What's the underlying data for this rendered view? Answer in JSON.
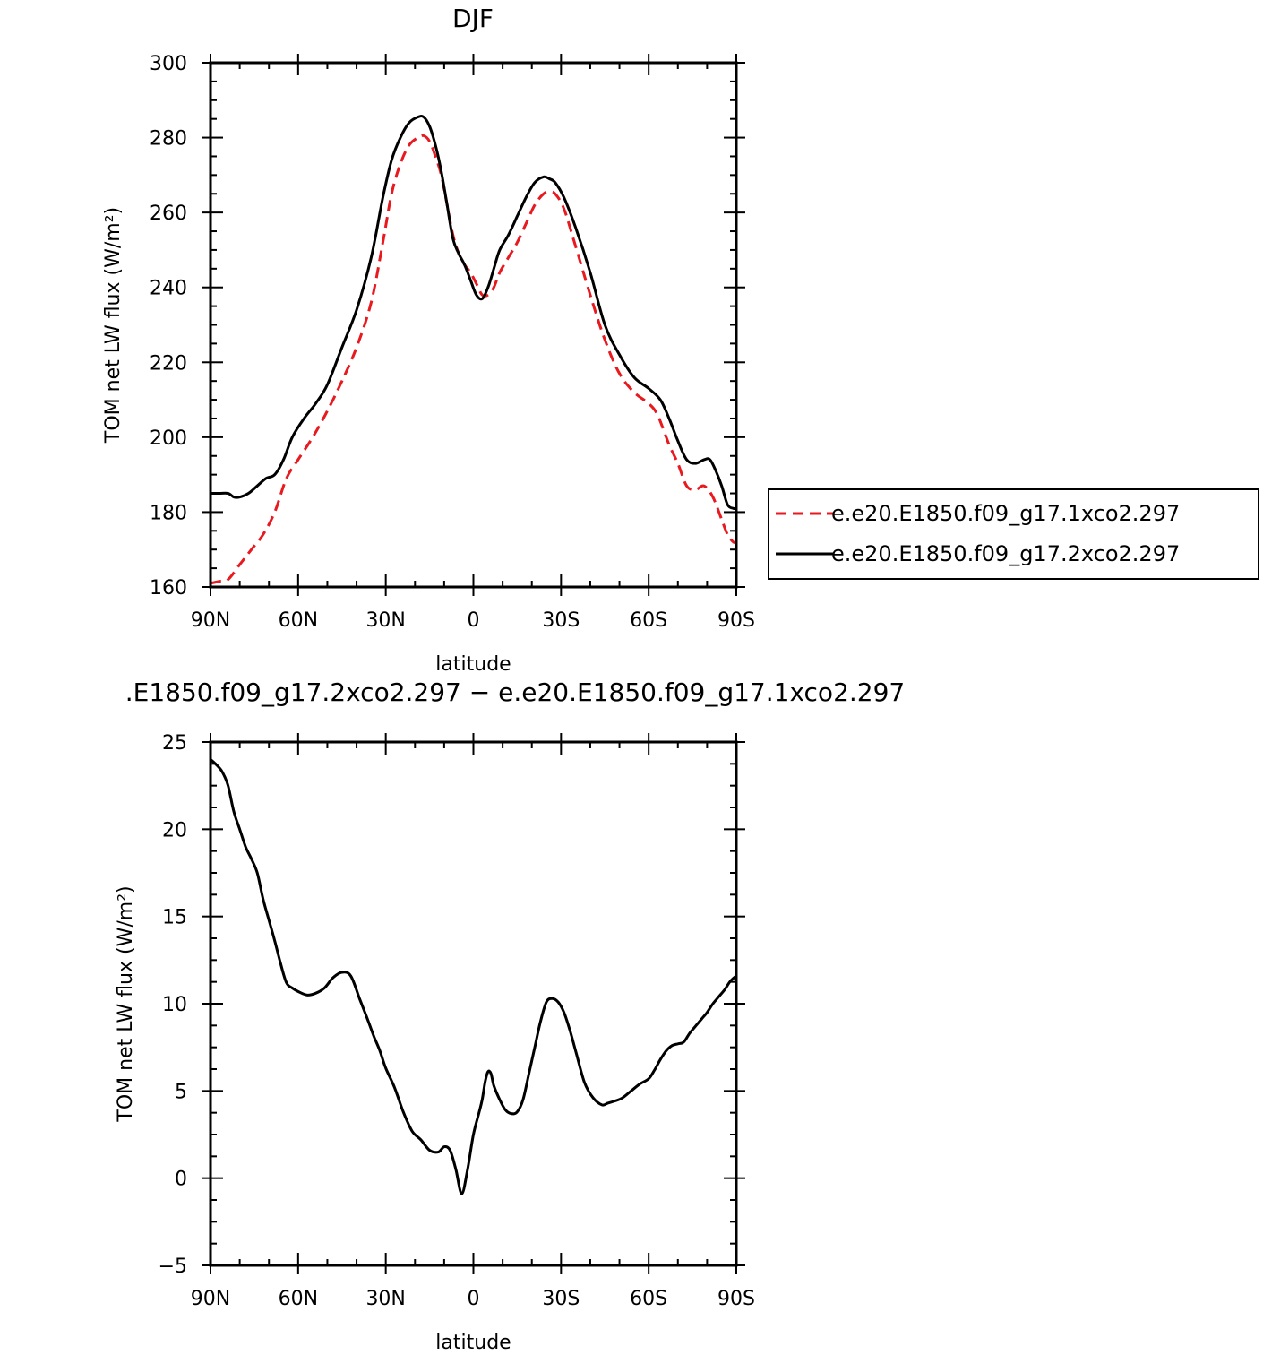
{
  "chart_data": [
    {
      "type": "line",
      "title": "DJF",
      "xlabel": "latitude",
      "ylabel": "TOM net LW flux (W/m²)",
      "xlim": [
        90,
        -90
      ],
      "ylim": [
        160,
        300
      ],
      "x_ticks": [
        {
          "value": 90,
          "label": "90N"
        },
        {
          "value": 60,
          "label": "60N"
        },
        {
          "value": 30,
          "label": "30N"
        },
        {
          "value": 0,
          "label": "0"
        },
        {
          "value": -30,
          "label": "30S"
        },
        {
          "value": -60,
          "label": "60S"
        },
        {
          "value": -90,
          "label": "90S"
        }
      ],
      "y_ticks": [
        160,
        180,
        200,
        220,
        240,
        260,
        280,
        300
      ],
      "legend_position": "right",
      "series": [
        {
          "name": "e.e20.E1850.f09_g17.1xco2.297",
          "color": "#e8191f",
          "dash": true,
          "x": [
            90,
            87,
            84,
            80,
            76,
            72,
            68,
            64,
            60,
            55,
            50,
            45,
            40,
            35,
            31,
            28,
            25,
            22,
            19,
            17,
            15,
            13,
            11,
            9,
            7,
            5,
            3,
            1,
            -1,
            -3,
            -5,
            -7,
            -9,
            -12,
            -15,
            -18,
            -21,
            -24,
            -26,
            -28,
            -31,
            -35,
            -40,
            -45,
            -50,
            -55,
            -60,
            -63,
            -67,
            -70,
            -73,
            -76,
            -79,
            -82,
            -85,
            -87,
            -89,
            -90
          ],
          "y": [
            161,
            161.5,
            162,
            166,
            170,
            174,
            180,
            189,
            194,
            200,
            207,
            215,
            224,
            236,
            252,
            265,
            273,
            278,
            280,
            280.5,
            279,
            275,
            270,
            262,
            254,
            249,
            246,
            244,
            241,
            238,
            238,
            240,
            244,
            248,
            252,
            257,
            262,
            265,
            265.5,
            265,
            261,
            251,
            238,
            226,
            217,
            212,
            209,
            206,
            198,
            193,
            187,
            186,
            187,
            184,
            178,
            174,
            172,
            172
          ]
        },
        {
          "name": "e.e20.E1850.f09_g17.2xco2.297",
          "color": "#000000",
          "dash": false,
          "x": [
            90,
            87,
            84,
            82,
            80,
            77,
            74,
            71,
            68,
            65,
            62,
            58,
            54,
            50,
            45,
            40,
            35,
            31,
            28,
            25,
            22,
            19,
            17,
            15,
            13,
            11,
            9,
            7,
            5,
            3,
            1,
            -1,
            -3,
            -5,
            -7,
            -9,
            -12,
            -15,
            -18,
            -21,
            -24,
            -26,
            -28,
            -31,
            -35,
            -40,
            -45,
            -50,
            -55,
            -60,
            -64,
            -67,
            -70,
            -73,
            -76,
            -79,
            -81,
            -83,
            -85,
            -87,
            -89,
            -90
          ],
          "y": [
            185,
            185,
            185,
            184,
            184,
            185,
            187,
            189,
            190,
            194,
            200,
            205,
            209,
            214,
            224,
            234,
            248,
            264,
            274,
            280,
            284,
            285.5,
            285.5,
            283,
            278,
            271,
            262,
            253,
            249,
            246,
            242,
            238,
            237,
            240,
            245,
            250,
            254,
            259,
            264,
            268,
            269.5,
            269,
            268,
            264,
            256,
            244,
            230,
            222,
            216,
            213,
            210,
            205,
            199,
            194,
            193,
            194,
            194,
            191,
            187,
            182,
            181,
            181
          ]
        }
      ]
    },
    {
      "type": "line",
      "title": ".E1850.f09_g17.2xco2.297 − e.e20.E1850.f09_g17.1xco2.297",
      "xlabel": "latitude",
      "ylabel": "TOM net LW flux (W/m²)",
      "xlim": [
        90,
        -90
      ],
      "ylim": [
        -5,
        25
      ],
      "x_ticks": [
        {
          "value": 90,
          "label": "90N"
        },
        {
          "value": 60,
          "label": "60N"
        },
        {
          "value": 30,
          "label": "30N"
        },
        {
          "value": 0,
          "label": "0"
        },
        {
          "value": -30,
          "label": "30S"
        },
        {
          "value": -60,
          "label": "60S"
        },
        {
          "value": -90,
          "label": "90S"
        }
      ],
      "y_ticks": [
        -5,
        0,
        5,
        10,
        15,
        20,
        25
      ],
      "series": [
        {
          "color": "#000000",
          "dash": false,
          "x": [
            90,
            88,
            86,
            84,
            82,
            80,
            78,
            76,
            74,
            72,
            70,
            68,
            66,
            64,
            62,
            60,
            57,
            54,
            51,
            48,
            45,
            42,
            39,
            36,
            34,
            32,
            30,
            27,
            24,
            21,
            18,
            15,
            12,
            10,
            8,
            6,
            4,
            2,
            0,
            -2,
            -3,
            -4,
            -5,
            -6,
            -7,
            -9,
            -11,
            -13,
            -15,
            -17,
            -19,
            -21,
            -23,
            -25,
            -27,
            -29,
            -31,
            -33,
            -35,
            -38,
            -41,
            -44,
            -46,
            -48,
            -51,
            -54,
            -57,
            -60,
            -62,
            -64,
            -66,
            -68,
            -70,
            -72,
            -74,
            -76,
            -78,
            -80,
            -82,
            -84,
            -86,
            -88,
            -90
          ],
          "y": [
            24,
            23.7,
            23.3,
            22.5,
            21,
            20,
            19,
            18.3,
            17.5,
            16,
            14.8,
            13.6,
            12.3,
            11.2,
            10.9,
            10.7,
            10.5,
            10.6,
            10.9,
            11.5,
            11.8,
            11.6,
            10.3,
            9.0,
            8.1,
            7.3,
            6.3,
            5.2,
            3.8,
            2.7,
            2.2,
            1.6,
            1.5,
            1.8,
            1.6,
            0.5,
            -0.9,
            0.5,
            2.5,
            3.8,
            4.5,
            5.5,
            6.1,
            6.0,
            5.3,
            4.5,
            3.9,
            3.7,
            3.8,
            4.5,
            6.0,
            7.5,
            9.0,
            10.1,
            10.3,
            10.1,
            9.5,
            8.5,
            7.3,
            5.5,
            4.6,
            4.2,
            4.3,
            4.4,
            4.6,
            5.0,
            5.4,
            5.7,
            6.2,
            6.8,
            7.3,
            7.6,
            7.7,
            7.8,
            8.3,
            8.7,
            9.1,
            9.5,
            10.0,
            10.4,
            10.8,
            11.3,
            11.6
          ]
        }
      ]
    }
  ]
}
